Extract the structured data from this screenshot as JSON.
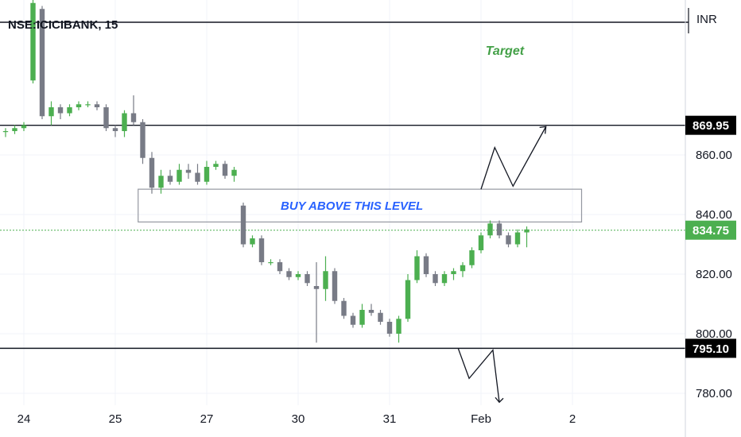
{
  "chart_data": {
    "type": "candlestick",
    "title": "NSE:ICICIBANK, 15",
    "currency": "INR",
    "y_ticks": [
      "860.00",
      "840.00",
      "820.00",
      "800.00",
      "780.00"
    ],
    "y_tick_values": [
      860,
      840,
      820,
      800,
      780
    ],
    "ylim": [
      776,
      912
    ],
    "x_ticks": [
      "24",
      "25",
      "27",
      "30",
      "31",
      "Feb",
      "2"
    ],
    "x_tick_bar_index": [
      2,
      12,
      22,
      32,
      42,
      52,
      62
    ],
    "bar_count": 68,
    "grid": true,
    "last_price": {
      "label": "834.75",
      "value": 834.75,
      "color": "#4caf50"
    },
    "levels": [
      {
        "label": "869.95",
        "value": 869.95
      },
      {
        "label": "795.10",
        "value": 795.1
      }
    ],
    "zone": {
      "text": "BUY ABOVE THIS LEVEL",
      "top": 848.5,
      "bottom": 837.5,
      "from_bar": 14.5,
      "to_bar": 63
    },
    "target_label": "Target",
    "colors": {
      "up": "#4caf50",
      "down": "#787b86",
      "zone_text": "#2962ff",
      "target_text": "#43a047"
    },
    "candles": [
      {
        "o": 868,
        "h": 869,
        "l": 866,
        "c": 868
      },
      {
        "o": 868,
        "h": 870,
        "l": 867,
        "c": 869
      },
      {
        "o": 869,
        "h": 871,
        "l": 868,
        "c": 870
      },
      {
        "o": 885,
        "h": 912,
        "l": 884,
        "c": 911
      },
      {
        "o": 909,
        "h": 910,
        "l": 872,
        "c": 873
      },
      {
        "o": 873,
        "h": 878,
        "l": 870,
        "c": 876
      },
      {
        "o": 876,
        "h": 877,
        "l": 872,
        "c": 874
      },
      {
        "o": 874,
        "h": 877,
        "l": 873,
        "c": 876
      },
      {
        "o": 876,
        "h": 878,
        "l": 875,
        "c": 877
      },
      {
        "o": 877,
        "h": 878,
        "l": 876,
        "c": 877
      },
      {
        "o": 877,
        "h": 878,
        "l": 875,
        "c": 876
      },
      {
        "o": 876,
        "h": 877,
        "l": 868,
        "c": 869
      },
      {
        "o": 869,
        "h": 870,
        "l": 866,
        "c": 868
      },
      {
        "o": 868,
        "h": 875,
        "l": 866,
        "c": 874
      },
      {
        "o": 874,
        "h": 880,
        "l": 870,
        "c": 871
      },
      {
        "o": 871,
        "h": 872,
        "l": 857,
        "c": 859
      },
      {
        "o": 859,
        "h": 861,
        "l": 847,
        "c": 849
      },
      {
        "o": 849,
        "h": 855,
        "l": 847,
        "c": 853
      },
      {
        "o": 853,
        "h": 855,
        "l": 850,
        "c": 851
      },
      {
        "o": 851,
        "h": 857,
        "l": 850,
        "c": 855
      },
      {
        "o": 855,
        "h": 857,
        "l": 852,
        "c": 854
      },
      {
        "o": 854,
        "h": 857,
        "l": 850,
        "c": 851
      },
      {
        "o": 851,
        "h": 858,
        "l": 850,
        "c": 856
      },
      {
        "o": 856,
        "h": 858,
        "l": 855,
        "c": 857
      },
      {
        "o": 857,
        "h": 858,
        "l": 852,
        "c": 853
      },
      {
        "o": 853,
        "h": 856,
        "l": 851,
        "c": 855
      },
      {
        "o": 843,
        "h": 844,
        "l": 829,
        "c": 830
      },
      {
        "o": 830,
        "h": 833,
        "l": 829,
        "c": 832
      },
      {
        "o": 832,
        "h": 833,
        "l": 823,
        "c": 824
      },
      {
        "o": 824,
        "h": 825,
        "l": 823,
        "c": 824
      },
      {
        "o": 824,
        "h": 825,
        "l": 820,
        "c": 821
      },
      {
        "o": 821,
        "h": 822,
        "l": 818,
        "c": 819
      },
      {
        "o": 819,
        "h": 821,
        "l": 818,
        "c": 820
      },
      {
        "o": 820,
        "h": 821,
        "l": 816,
        "c": 817
      },
      {
        "o": 816,
        "h": 824,
        "l": 797,
        "c": 815
      },
      {
        "o": 815,
        "h": 826,
        "l": 811,
        "c": 821
      },
      {
        "o": 821,
        "h": 822,
        "l": 810,
        "c": 811
      },
      {
        "o": 811,
        "h": 812,
        "l": 805,
        "c": 806
      },
      {
        "o": 806,
        "h": 807,
        "l": 802,
        "c": 803
      },
      {
        "o": 803,
        "h": 810,
        "l": 802,
        "c": 808
      },
      {
        "o": 808,
        "h": 810,
        "l": 806,
        "c": 807
      },
      {
        "o": 807,
        "h": 808,
        "l": 803,
        "c": 804
      },
      {
        "o": 804,
        "h": 805,
        "l": 799,
        "c": 800
      },
      {
        "o": 800,
        "h": 806,
        "l": 797,
        "c": 805
      },
      {
        "o": 805,
        "h": 820,
        "l": 804,
        "c": 818
      },
      {
        "o": 818,
        "h": 828,
        "l": 817,
        "c": 826
      },
      {
        "o": 826,
        "h": 827,
        "l": 819,
        "c": 820
      },
      {
        "o": 820,
        "h": 821,
        "l": 816,
        "c": 817
      },
      {
        "o": 817,
        "h": 821,
        "l": 816,
        "c": 820
      },
      {
        "o": 820,
        "h": 822,
        "l": 818,
        "c": 821
      },
      {
        "o": 821,
        "h": 824,
        "l": 819,
        "c": 823
      },
      {
        "o": 823,
        "h": 829,
        "l": 822,
        "c": 828
      },
      {
        "o": 828,
        "h": 834,
        "l": 827,
        "c": 833
      },
      {
        "o": 833,
        "h": 838,
        "l": 832,
        "c": 837
      },
      {
        "o": 837,
        "h": 838,
        "l": 832,
        "c": 833
      },
      {
        "o": 833,
        "h": 834,
        "l": 829,
        "c": 830
      },
      {
        "o": 830,
        "h": 835,
        "l": 829,
        "c": 834
      },
      {
        "o": 834,
        "h": 836,
        "l": 829,
        "c": 835
      }
    ]
  }
}
